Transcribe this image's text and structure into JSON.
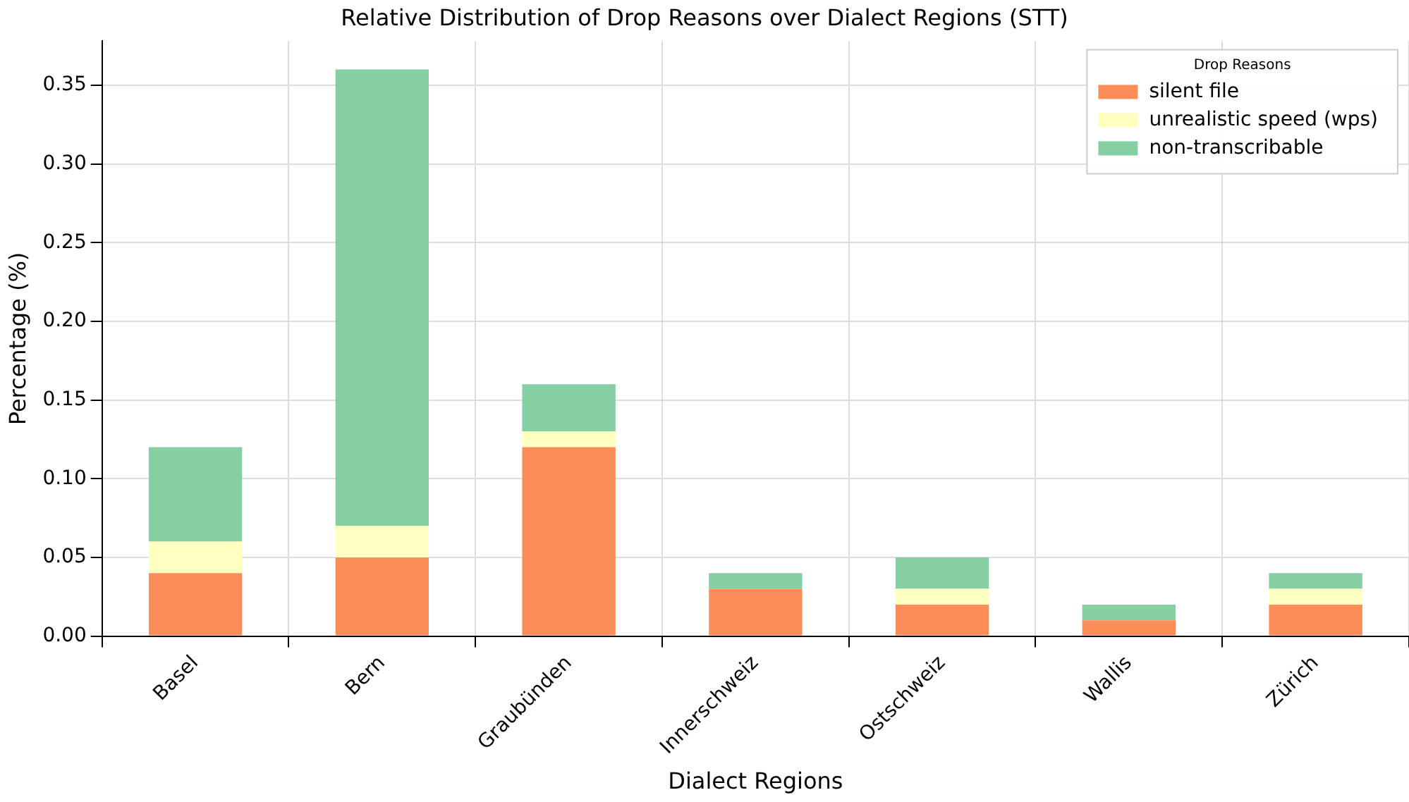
{
  "chart_data": {
    "type": "bar",
    "title": "Relative Distribution of Drop Reasons over Dialect Regions (STT)",
    "xlabel": "Dialect Regions",
    "ylabel": "Percentage (%)",
    "legend_title": "Drop Reasons",
    "categories": [
      "Basel",
      "Bern",
      "Graubünden",
      "Innerschweiz",
      "Ostschweiz",
      "Wallis",
      "Zürich"
    ],
    "series": [
      {
        "name": "silent file",
        "color": "#fc8d59",
        "values": [
          0.04,
          0.05,
          0.12,
          0.03,
          0.02,
          0.01,
          0.02
        ]
      },
      {
        "name": "unrealistic speed (wps)",
        "color": "#ffffbf",
        "values": [
          0.02,
          0.02,
          0.01,
          0,
          0.01,
          0,
          0.01
        ]
      },
      {
        "name": "non-transcribable",
        "color": "#86cfa3",
        "values": [
          0.06,
          0.29,
          0.03,
          0.01,
          0.02,
          0.01,
          0.01
        ]
      }
    ],
    "stacked": true,
    "ylim": [
      0,
      0.378
    ],
    "yticks": [
      {
        "value": 0,
        "label": "0.00"
      },
      {
        "value": 0.05,
        "label": "0.05"
      },
      {
        "value": 0.1,
        "label": "0.10"
      },
      {
        "value": 0.15,
        "label": "0.15"
      },
      {
        "value": 0.2,
        "label": "0.20"
      },
      {
        "value": 0.25,
        "label": "0.25"
      },
      {
        "value": 0.3,
        "label": "0.30"
      },
      {
        "value": 0.35,
        "label": "0.35"
      }
    ],
    "grid": true,
    "legend": "top right"
  }
}
